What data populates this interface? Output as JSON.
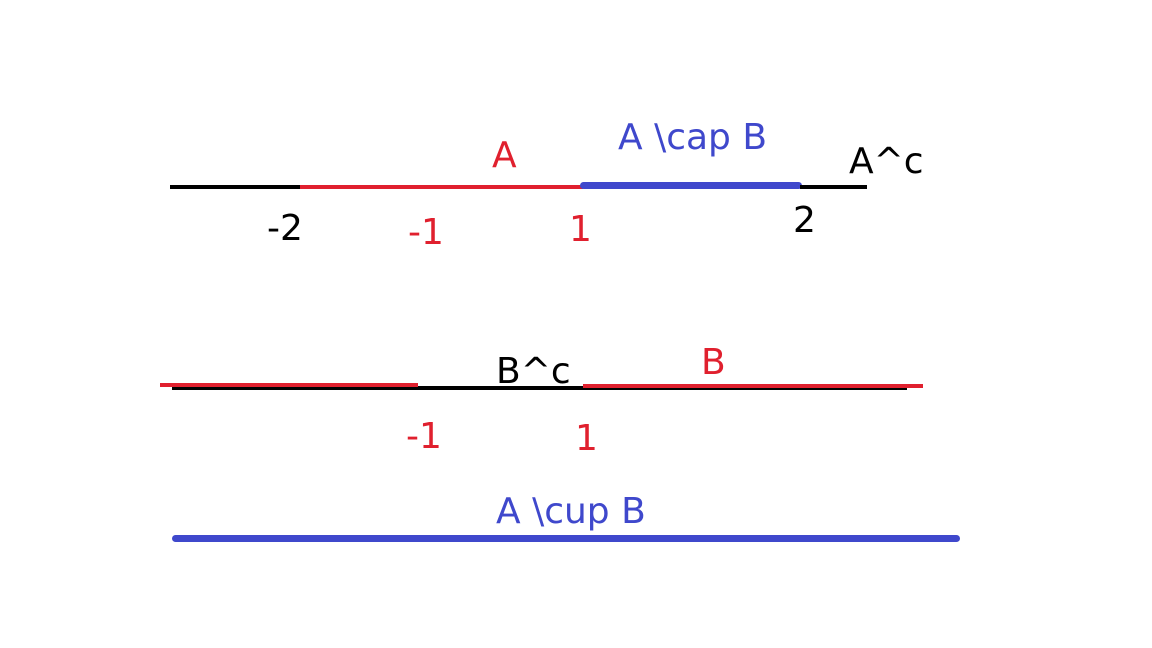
{
  "colors": {
    "black": "#000000",
    "red": "#e0202e",
    "blue": "#3f48cc"
  },
  "line1": {
    "labels": {
      "a": "A",
      "a_cap_b": "A \\cap B",
      "a_complement": "A^c",
      "tick_neg2": "-2",
      "tick_neg1": "-1",
      "tick_1": "1",
      "tick_2": "2"
    }
  },
  "line2": {
    "labels": {
      "b_complement": "B^c",
      "b": "B",
      "tick_neg1": "-1",
      "tick_1": "1"
    }
  },
  "line3": {
    "labels": {
      "a_cup_b": "A \\cup B"
    }
  }
}
